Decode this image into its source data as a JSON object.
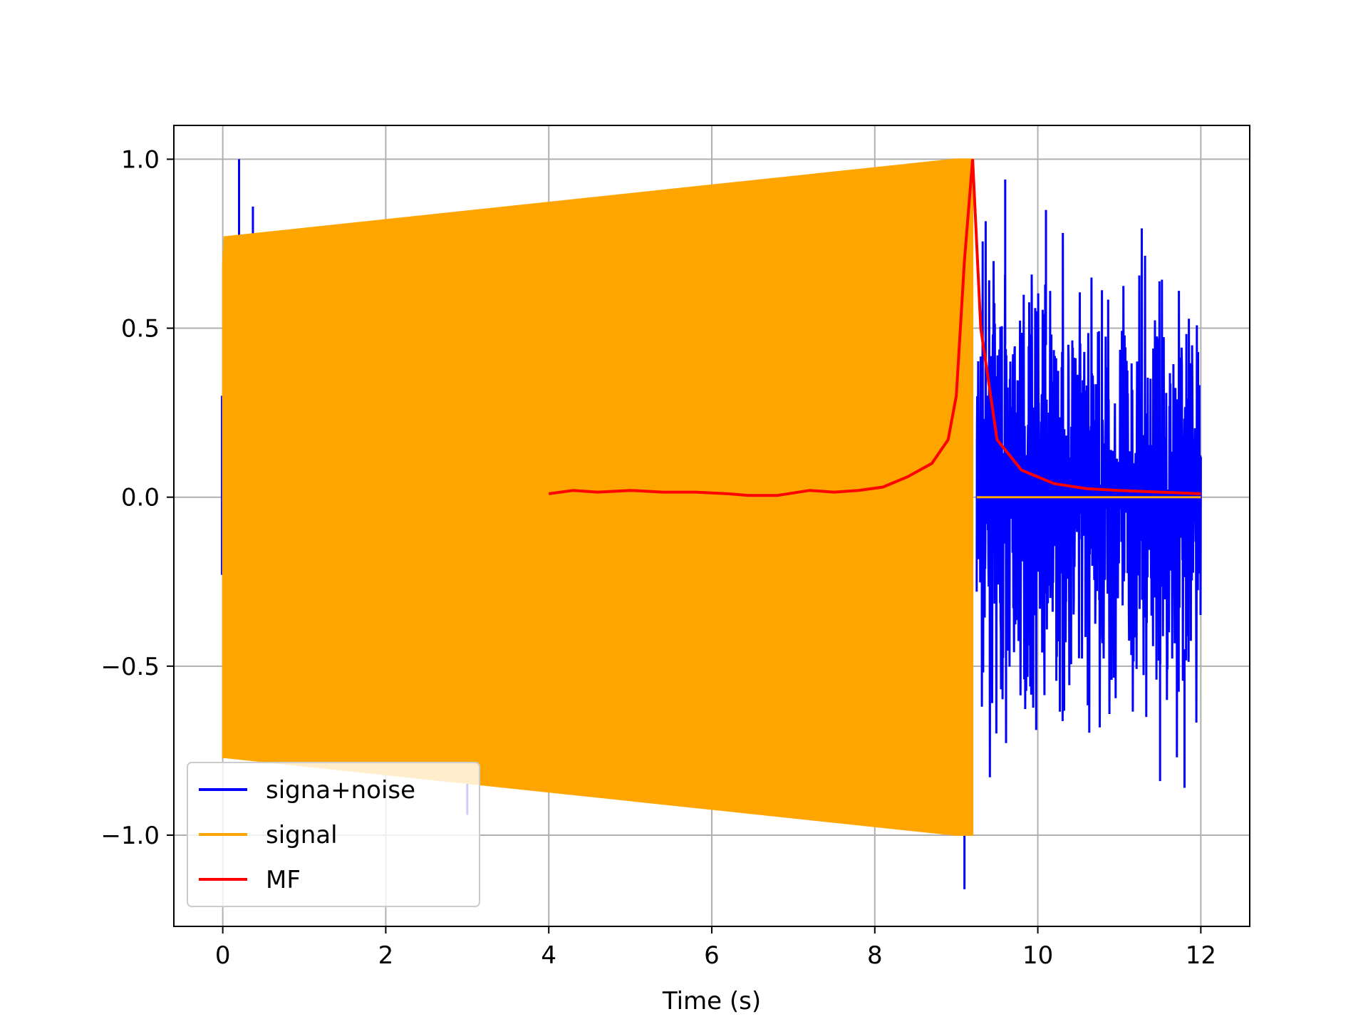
{
  "chart_data": {
    "type": "line",
    "title": "",
    "xlabel": "Time (s)",
    "ylabel": "",
    "xlim": [
      -0.6,
      12.6
    ],
    "ylim": [
      -1.27,
      1.1
    ],
    "grid": true,
    "x_ticks": [
      0,
      2,
      4,
      6,
      8,
      10,
      12
    ],
    "x_tick_labels": [
      "0",
      "2",
      "4",
      "6",
      "8",
      "10",
      "12"
    ],
    "y_ticks": [
      1.0,
      0.5,
      0.0,
      -0.5,
      -1.0
    ],
    "y_tick_labels": [
      "1.0",
      "0.5",
      "0.0",
      "−0.5",
      "−1.0"
    ],
    "legend_position": "lower-left",
    "series": [
      {
        "name": "signa+noise",
        "color": "#0000ff",
        "description_points": {
          "noise_only_segment": {
            "x_start": 9.25,
            "x_end": 12.0
          },
          "peaks": [
            {
              "x": 0.2,
              "y": 1.0
            },
            {
              "x": 0.37,
              "y": 0.86
            },
            {
              "x": 3.0,
              "y": -0.94
            },
            {
              "x": 6.45,
              "y": 0.92
            },
            {
              "x": 9.1,
              "y": -1.16
            },
            {
              "x": 9.6,
              "y": 0.94
            },
            {
              "x": 10.1,
              "y": 0.85
            },
            {
              "x": 11.5,
              "y": -0.84
            },
            {
              "x": 11.8,
              "y": -0.86
            }
          ]
        }
      },
      {
        "name": "signal",
        "color": "#ffa500",
        "envelope": {
          "x": [
            0.0,
            0.02,
            9.0,
            9.2,
            9.25,
            12.0
          ],
          "upper": [
            0.68,
            0.77,
            1.0,
            1.0,
            0.0,
            0.0
          ],
          "lower": [
            -0.77,
            -0.77,
            -1.0,
            -1.0,
            0.0,
            0.0
          ]
        }
      },
      {
        "name": "MF",
        "color": "#ff0000",
        "x": [
          4.0,
          4.3,
          4.6,
          5.0,
          5.4,
          5.8,
          6.2,
          6.45,
          6.8,
          7.2,
          7.5,
          7.8,
          8.1,
          8.4,
          8.7,
          8.9,
          9.0,
          9.1,
          9.2,
          9.3,
          9.5,
          9.8,
          10.2,
          10.6,
          11.0,
          11.5,
          12.0
        ],
        "values": [
          0.01,
          0.02,
          0.015,
          0.02,
          0.015,
          0.015,
          0.01,
          0.005,
          0.005,
          0.02,
          0.015,
          0.02,
          0.03,
          0.06,
          0.1,
          0.17,
          0.3,
          0.7,
          1.0,
          0.5,
          0.17,
          0.08,
          0.04,
          0.025,
          0.02,
          0.015,
          0.01
        ]
      }
    ]
  }
}
